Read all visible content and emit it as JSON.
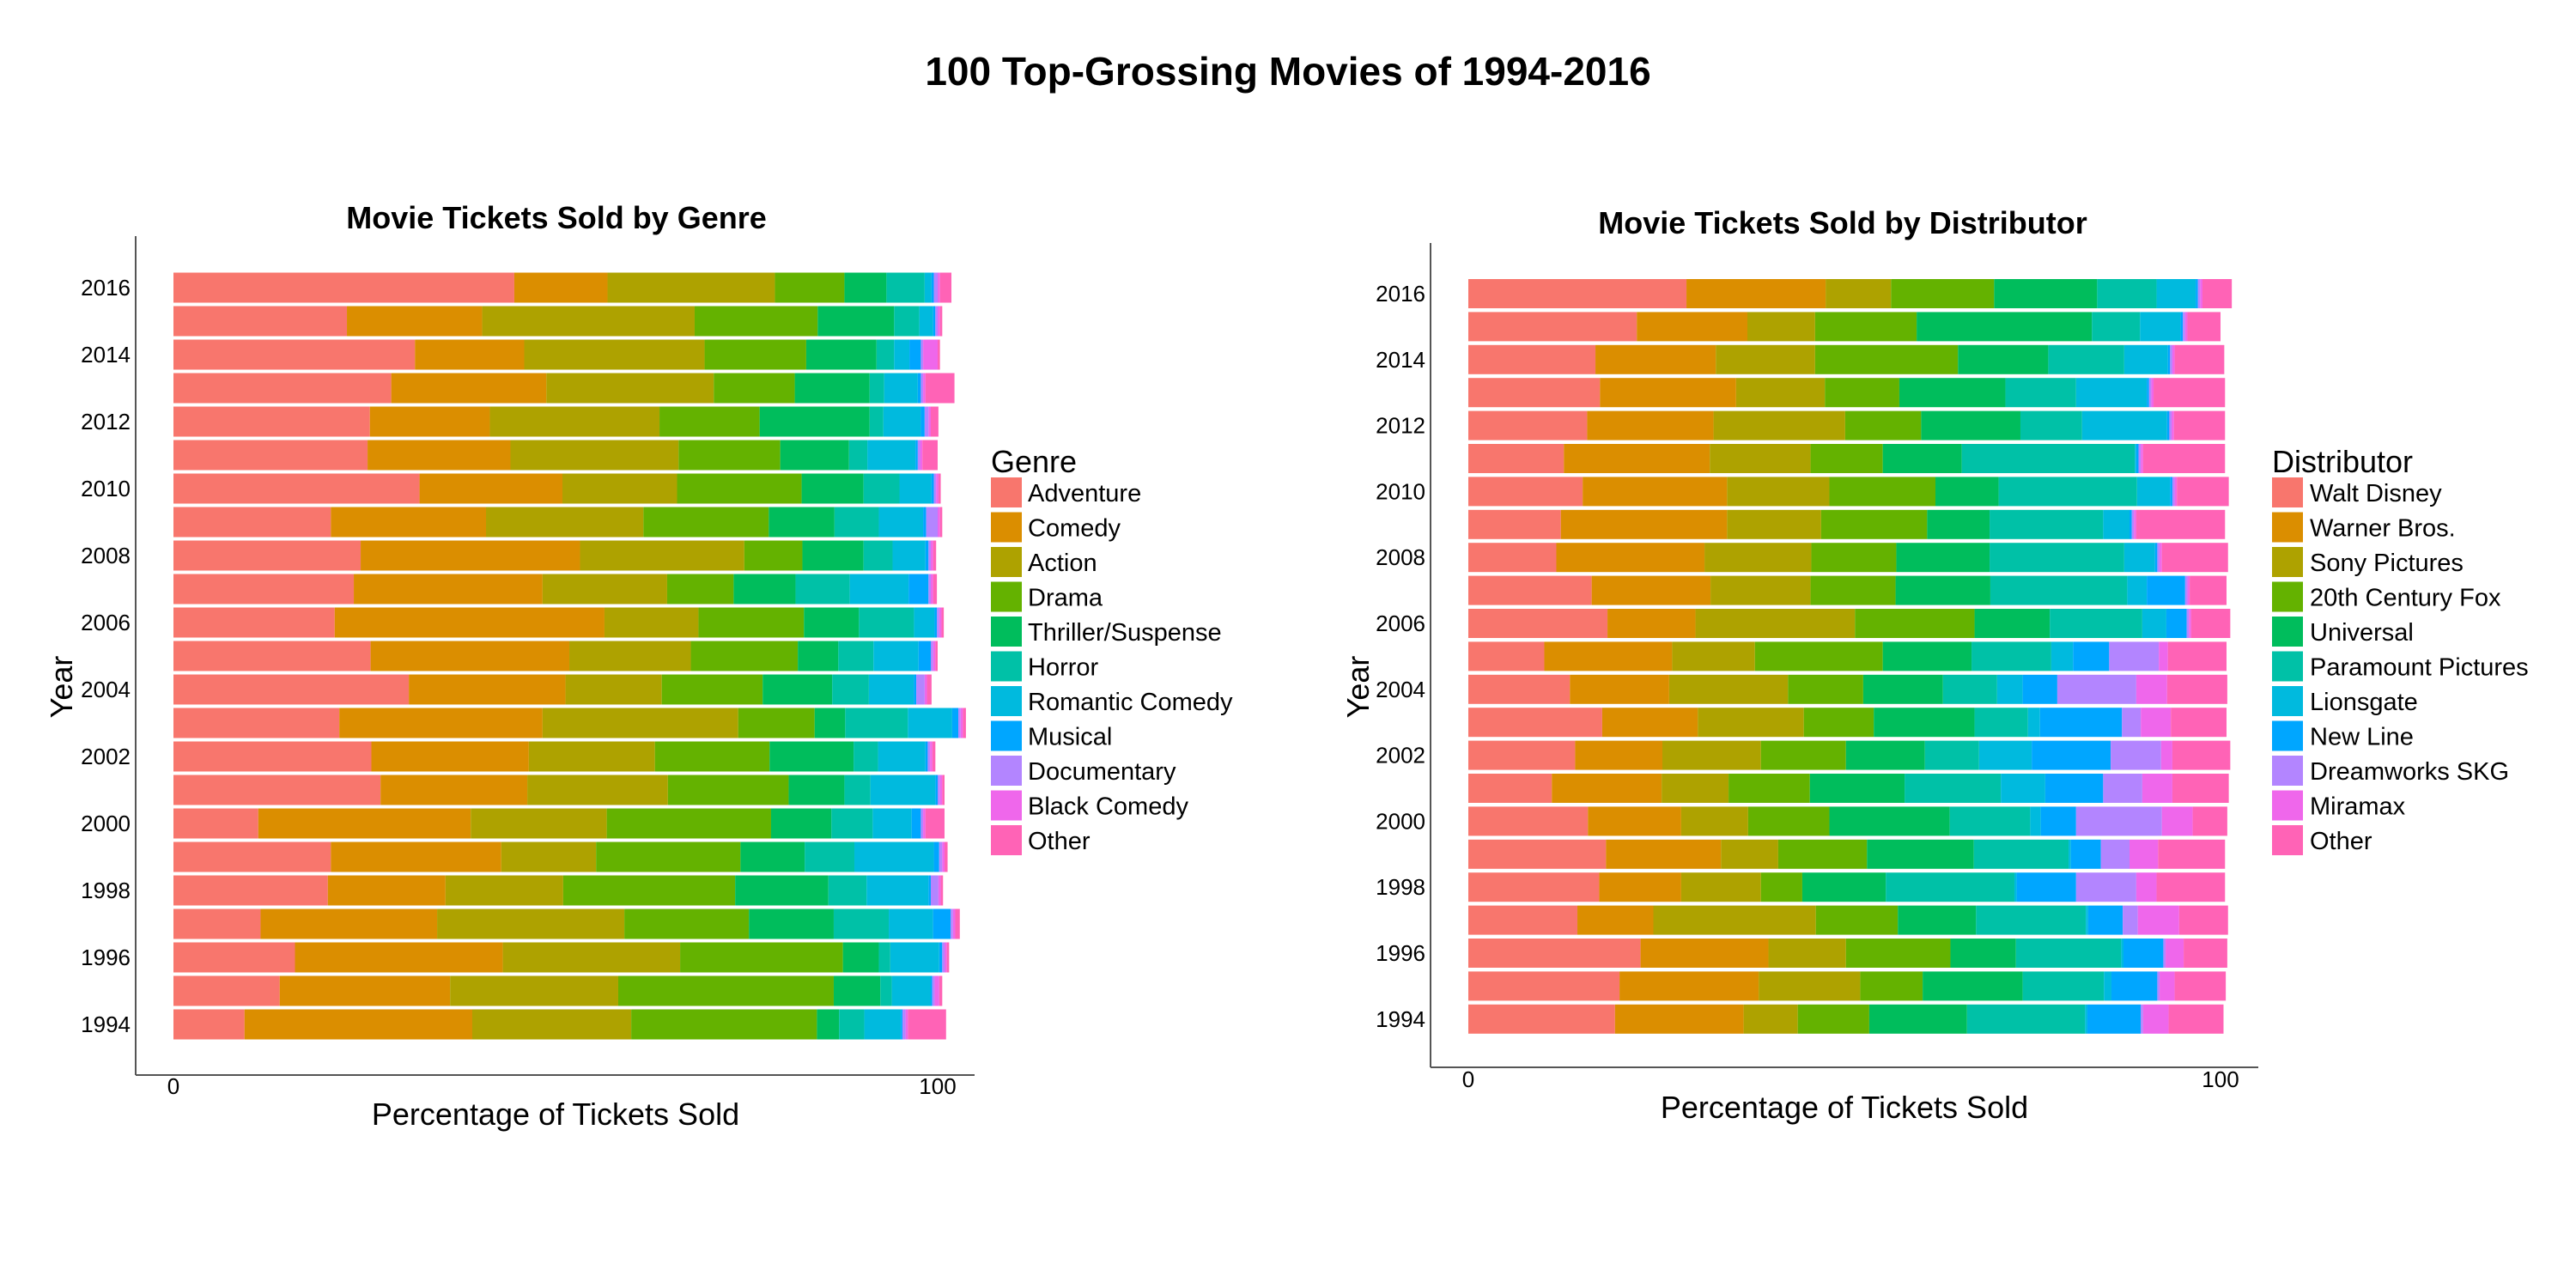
{
  "title": "100 Top-Grossing Movies of 1994-2016",
  "chart_data": [
    {
      "type": "bar",
      "orientation": "horizontal",
      "stacked": true,
      "title": "Movie Tickets Sold by Genre",
      "xlabel": "Percentage of Tickets Sold",
      "ylabel": "Year",
      "xlim": [
        0,
        100
      ],
      "x_ticks": [
        "0",
        "100"
      ],
      "y_ticks": [
        "2016",
        "2014",
        "2012",
        "2010",
        "2008",
        "2006",
        "2004",
        "2002",
        "2000",
        "1998",
        "1996",
        "1994"
      ],
      "grid": false,
      "legend": {
        "title": "Genre",
        "position": "right"
      },
      "categories": [
        "2016",
        "2015",
        "2014",
        "2013",
        "2012",
        "2011",
        "2010",
        "2009",
        "2008",
        "2007",
        "2006",
        "2005",
        "2004",
        "2003",
        "2002",
        "2001",
        "2000",
        "1999",
        "1998",
        "1997",
        "1996",
        "1995",
        "1994"
      ],
      "series": [
        {
          "name": "Adventure",
          "color": "#F8766D",
          "values": [
            44.6,
            22.7,
            31.6,
            28.5,
            25.7,
            25.4,
            32.2,
            20.6,
            24.5,
            23.6,
            21.1,
            25.8,
            30.8,
            21.7,
            25.9,
            27.1,
            11.1,
            20.6,
            20.2,
            11.4,
            15.9,
            13.9,
            9.3
          ]
        },
        {
          "name": "Comedy",
          "color": "#DB8E00",
          "values": [
            12.2,
            17.7,
            14.3,
            20.3,
            15.7,
            18.7,
            18.7,
            20.3,
            28.7,
            24.7,
            35.3,
            26.0,
            20.5,
            26.6,
            20.6,
            19.2,
            27.8,
            22.3,
            15.4,
            23.1,
            27.2,
            22.3,
            29.8
          ]
        },
        {
          "name": "Action",
          "color": "#AEA200",
          "values": [
            21.9,
            27.8,
            23.6,
            21.9,
            22.2,
            22.0,
            15.0,
            20.6,
            21.5,
            16.3,
            12.3,
            15.9,
            12.6,
            25.6,
            16.5,
            18.4,
            17.8,
            12.4,
            15.4,
            24.5,
            23.2,
            22.0,
            20.8
          ]
        },
        {
          "name": "Drama",
          "color": "#64B200",
          "values": [
            9.1,
            16.1,
            13.3,
            10.6,
            13.1,
            13.3,
            16.3,
            16.4,
            7.6,
            8.7,
            13.8,
            14.0,
            13.2,
            10.0,
            15.0,
            15.8,
            21.5,
            18.9,
            22.5,
            16.3,
            21.3,
            28.2,
            24.3
          ]
        },
        {
          "name": "Thriller/Suspense",
          "color": "#00BD5C",
          "values": [
            5.5,
            10.0,
            9.2,
            9.8,
            14.4,
            9.0,
            8.1,
            8.6,
            8.0,
            8.1,
            7.2,
            5.3,
            9.1,
            4.0,
            11.0,
            7.3,
            7.9,
            8.4,
            12.2,
            11.1,
            4.7,
            6.1,
            2.9
          ]
        },
        {
          "name": "Horror",
          "color": "#00C1A7",
          "values": [
            5.0,
            3.3,
            2.3,
            1.9,
            1.8,
            2.4,
            4.7,
            5.8,
            3.8,
            7.1,
            7.2,
            4.6,
            4.8,
            8.2,
            3.2,
            3.4,
            5.4,
            6.5,
            5.0,
            7.2,
            1.5,
            1.5,
            3.3
          ]
        },
        {
          "name": "Romantic Comedy",
          "color": "#00BADE",
          "values": [
            0.9,
            1.8,
            2.0,
            4.4,
            4.9,
            6.3,
            4.2,
            5.8,
            4.3,
            7.7,
            2.7,
            5.9,
            5.9,
            5.8,
            6.2,
            8.5,
            5.1,
            10.4,
            8.1,
            5.8,
            6.4,
            5.1,
            4.8
          ]
        },
        {
          "name": "Musical",
          "color": "#00A6FF",
          "values": [
            0.3,
            0.3,
            1.5,
            0.4,
            0.5,
            0.3,
            0.3,
            0.4,
            0.4,
            2.6,
            0.3,
            1.6,
            0.3,
            0.8,
            0.3,
            0.3,
            1.2,
            0.7,
            0.3,
            2.3,
            0.4,
            0.2,
            0.2
          ]
        },
        {
          "name": "Documentary",
          "color": "#B385FF",
          "values": [
            0.5,
            0.3,
            0.3,
            0.3,
            0.5,
            0.3,
            0.3,
            1.5,
            0.3,
            0.3,
            0.3,
            0.3,
            1.1,
            0.3,
            0.3,
            0.3,
            0.3,
            0.4,
            1.0,
            0.3,
            0.3,
            0.3,
            0.4
          ]
        },
        {
          "name": "Black Comedy",
          "color": "#EF67EB",
          "values": [
            0.3,
            0.3,
            1.9,
            0.3,
            0.3,
            0.3,
            0.3,
            0.3,
            0.3,
            0.3,
            0.3,
            0.3,
            0.3,
            0.3,
            0.3,
            0.3,
            0.3,
            0.3,
            0.3,
            0.3,
            0.3,
            0.6,
            0.3
          ]
        },
        {
          "name": "Other",
          "color": "#FF63B6",
          "values": [
            1.5,
            0.3,
            0.3,
            3.8,
            1.0,
            2.0,
            0.3,
            0.3,
            0.4,
            0.5,
            0.3,
            0.3,
            0.6,
            0.4,
            0.4,
            0.3,
            2.5,
            0.4,
            0.3,
            0.6,
            0.3,
            0.4,
            5.0
          ]
        }
      ]
    },
    {
      "type": "bar",
      "orientation": "horizontal",
      "stacked": true,
      "title": "Movie Tickets Sold by Distributor",
      "xlabel": "Percentage of Tickets Sold",
      "ylabel": "Year",
      "xlim": [
        0,
        100
      ],
      "x_ticks": [
        "0",
        "100"
      ],
      "y_ticks": [
        "2016",
        "2014",
        "2012",
        "2010",
        "2008",
        "2006",
        "2004",
        "2002",
        "2000",
        "1998",
        "1996",
        "1994"
      ],
      "grid": false,
      "legend": {
        "title": "Distributor",
        "position": "right"
      },
      "categories": [
        "2016",
        "2015",
        "2014",
        "2013",
        "2012",
        "2011",
        "2010",
        "2009",
        "2008",
        "2007",
        "2006",
        "2005",
        "2004",
        "2003",
        "2002",
        "2001",
        "2000",
        "1999",
        "1998",
        "1997",
        "1996",
        "1995",
        "1994"
      ],
      "series": [
        {
          "name": "Walt Disney",
          "color": "#F8766D",
          "values": [
            29.0,
            22.4,
            16.9,
            17.5,
            15.8,
            12.7,
            15.2,
            12.3,
            11.7,
            16.4,
            18.5,
            10.1,
            13.5,
            17.8,
            14.2,
            11.1,
            15.9,
            18.3,
            17.4,
            14.5,
            22.9,
            20.1,
            19.5
          ]
        },
        {
          "name": "Warner Bros.",
          "color": "#DB8E00",
          "values": [
            18.5,
            14.7,
            16.0,
            18.1,
            16.8,
            19.4,
            19.2,
            22.1,
            19.7,
            15.8,
            11.7,
            17.0,
            13.2,
            12.7,
            11.6,
            14.6,
            12.4,
            15.3,
            10.9,
            10.1,
            17.0,
            18.5,
            17.1
          ]
        },
        {
          "name": "Sony Pictures",
          "color": "#AEA200",
          "values": [
            8.7,
            9.0,
            13.2,
            11.8,
            17.5,
            13.4,
            13.6,
            12.5,
            14.2,
            13.3,
            21.2,
            11.0,
            15.8,
            14.1,
            13.1,
            8.9,
            8.9,
            7.6,
            10.6,
            21.6,
            10.3,
            13.5,
            7.2
          ]
        },
        {
          "name": "20th Century Fox",
          "color": "#64B200",
          "values": [
            13.7,
            13.5,
            19.0,
            9.9,
            10.1,
            9.6,
            14.1,
            14.1,
            11.3,
            11.3,
            15.9,
            17.0,
            10.0,
            9.3,
            11.3,
            10.8,
            10.8,
            11.8,
            5.5,
            10.9,
            13.9,
            8.3,
            9.5
          ]
        },
        {
          "name": "Universal",
          "color": "#00BD5C",
          "values": [
            13.7,
            23.3,
            12.0,
            14.1,
            13.2,
            10.5,
            8.4,
            8.3,
            12.4,
            12.6,
            10.0,
            11.8,
            10.6,
            13.4,
            10.5,
            12.6,
            16.0,
            14.2,
            11.1,
            10.4,
            8.7,
            13.3,
            13.0
          ]
        },
        {
          "name": "Paramount Pictures",
          "color": "#00C1A7",
          "values": [
            7.9,
            6.4,
            10.1,
            9.4,
            8.2,
            23.0,
            18.4,
            15.1,
            17.9,
            18.2,
            12.3,
            10.6,
            7.2,
            7.1,
            7.2,
            12.8,
            10.7,
            12.6,
            17.1,
            14.6,
            14.0,
            10.8,
            15.7
          ]
        },
        {
          "name": "Lionsgate",
          "color": "#00BADE",
          "values": [
            5.2,
            5.4,
            5.8,
            9.4,
            11.3,
            0.2,
            4.4,
            3.5,
            4.1,
            2.6,
            3.2,
            2.9,
            3.4,
            1.6,
            7.0,
            5.9,
            1.4,
            0.3,
            0.3,
            0.3,
            0.3,
            1.0,
            0.3
          ]
        },
        {
          "name": "New Line",
          "color": "#00A6FF",
          "values": [
            0.3,
            0.3,
            0.3,
            0.3,
            0.3,
            0.3,
            0.3,
            0.3,
            0.3,
            5.1,
            2.7,
            4.8,
            4.6,
            10.9,
            10.5,
            7.7,
            4.7,
            4.0,
            7.9,
            4.6,
            5.3,
            6.1,
            7.1
          ]
        },
        {
          "name": "Dreamworks SKG",
          "color": "#B385FF",
          "values": [
            0.3,
            0.3,
            0.3,
            0.3,
            0.3,
            0.3,
            0.3,
            0.3,
            0.3,
            0.3,
            0.3,
            6.6,
            10.5,
            2.5,
            6.7,
            5.2,
            11.4,
            3.8,
            8.0,
            2.0,
            0.3,
            0.3,
            0.3
          ]
        },
        {
          "name": "Miramax",
          "color": "#EF67EB",
          "values": [
            0.3,
            0.3,
            0.3,
            0.3,
            0.3,
            0.3,
            0.3,
            0.3,
            0.3,
            0.3,
            0.3,
            1.2,
            4.1,
            4.0,
            1.5,
            4.0,
            4.1,
            3.8,
            2.7,
            5.5,
            2.4,
            2.0,
            3.4
          ]
        },
        {
          "name": "Other",
          "color": "#FF63B6",
          "values": [
            3.9,
            4.4,
            6.6,
            9.5,
            6.8,
            10.9,
            6.9,
            11.8,
            8.8,
            4.9,
            5.2,
            7.8,
            8.0,
            7.4,
            7.7,
            7.5,
            4.6,
            8.9,
            9.1,
            6.5,
            5.8,
            6.8,
            7.3
          ]
        }
      ]
    }
  ]
}
